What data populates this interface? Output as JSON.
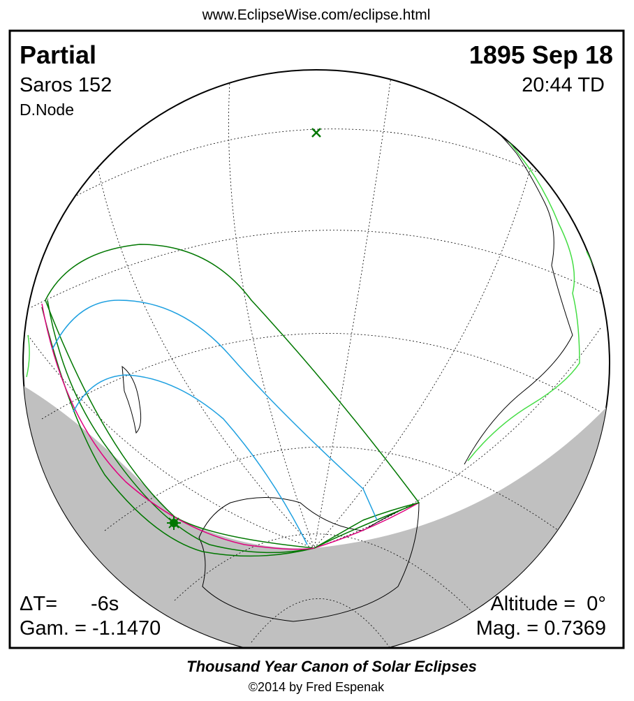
{
  "header": {
    "url": "www.EclipseWise.com/eclipse.html"
  },
  "panel": {
    "type": "Partial",
    "date": "1895 Sep 18",
    "saros": "Saros 152",
    "time": "20:44 TD",
    "node": "D.Node",
    "delta_t_label": "ΔT=",
    "delta_t_value": "-6s",
    "altitude": "Altitude =  0°",
    "gamma": "Gam. = -1.1470",
    "magnitude": "Mag. = 0.7369"
  },
  "footer": {
    "title": "Thousand Year Canon of Solar Eclipses",
    "copyright": "©2014 by Fred Espenak"
  }
}
